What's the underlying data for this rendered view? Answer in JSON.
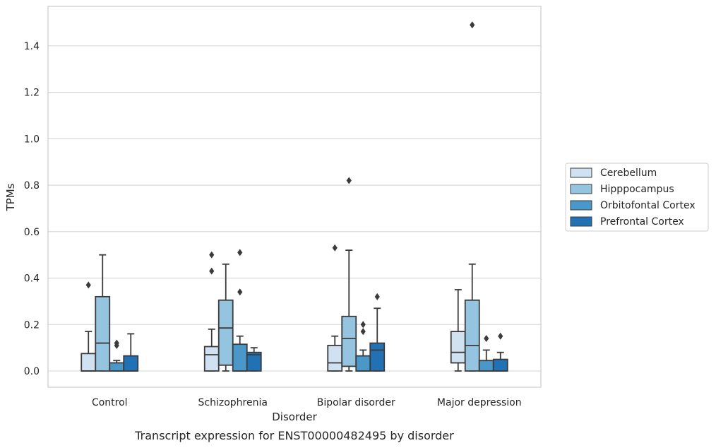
{
  "chart_data": {
    "type": "box",
    "caption": "Transcript expression for ENST00000482495 by disorder",
    "xlabel": "Disorder",
    "ylabel": "TPMs",
    "ylim": [
      -0.07,
      1.57
    ],
    "yticks": [
      0.0,
      0.2,
      0.4,
      0.6,
      0.8,
      1.0,
      1.2,
      1.4
    ],
    "ytick_labels": [
      "0.0",
      "0.2",
      "0.4",
      "0.6",
      "0.8",
      "1.0",
      "1.2",
      "1.4"
    ],
    "grid": "horizontal",
    "legend_position": "right",
    "categories": [
      "Control",
      "Schizophrenia",
      "Bipolar disorder",
      "Major depression"
    ],
    "series": [
      {
        "name": "Cerebellum",
        "color": "#d0e1f2",
        "boxes": [
          {
            "whisker_low": 0.0,
            "q1": 0.0,
            "median": 0.0,
            "q3": 0.075,
            "whisker_high": 0.17,
            "outliers": [
              0.37
            ]
          },
          {
            "whisker_low": 0.0,
            "q1": 0.0,
            "median": 0.07,
            "q3": 0.105,
            "whisker_high": 0.18,
            "outliers": [
              0.43,
              0.5
            ]
          },
          {
            "whisker_low": 0.0,
            "q1": 0.0,
            "median": 0.035,
            "q3": 0.11,
            "whisker_high": 0.15,
            "outliers": [
              0.53
            ]
          },
          {
            "whisker_low": 0.0,
            "q1": 0.035,
            "median": 0.08,
            "q3": 0.17,
            "whisker_high": 0.35,
            "outliers": []
          }
        ]
      },
      {
        "name": "Hipppocampus",
        "color": "#94c4df",
        "boxes": [
          {
            "whisker_low": 0.0,
            "q1": 0.0,
            "median": 0.12,
            "q3": 0.32,
            "whisker_high": 0.5,
            "outliers": []
          },
          {
            "whisker_low": 0.0,
            "q1": 0.025,
            "median": 0.185,
            "q3": 0.305,
            "whisker_high": 0.46,
            "outliers": []
          },
          {
            "whisker_low": 0.0,
            "q1": 0.02,
            "median": 0.14,
            "q3": 0.235,
            "whisker_high": 0.52,
            "outliers": [
              0.82
            ]
          },
          {
            "whisker_low": 0.0,
            "q1": 0.0,
            "median": 0.11,
            "q3": 0.305,
            "whisker_high": 0.46,
            "outliers": []
          }
        ]
      },
      {
        "name": "Orbitofontal Cortex",
        "color": "#4a98c9",
        "boxes": [
          {
            "whisker_low": 0.0,
            "q1": 0.0,
            "median": 0.0,
            "q3": 0.035,
            "whisker_high": 0.045,
            "outliers": [
              0.11,
              0.12
            ]
          },
          {
            "whisker_low": 0.0,
            "q1": 0.0,
            "median": 0.0,
            "q3": 0.115,
            "whisker_high": 0.15,
            "outliers": [
              0.34,
              0.51
            ]
          },
          {
            "whisker_low": 0.0,
            "q1": 0.0,
            "median": 0.0,
            "q3": 0.065,
            "whisker_high": 0.09,
            "outliers": [
              0.17,
              0.2
            ]
          },
          {
            "whisker_low": 0.0,
            "q1": 0.0,
            "median": 0.0,
            "q3": 0.045,
            "whisker_high": 0.09,
            "outliers": [
              0.14
            ]
          }
        ]
      },
      {
        "name": "Prefrontal Cortex",
        "color": "#2171b5",
        "boxes": [
          {
            "whisker_low": 0.0,
            "q1": 0.0,
            "median": 0.0,
            "q3": 0.065,
            "whisker_high": 0.16,
            "outliers": []
          },
          {
            "whisker_low": 0.0,
            "q1": 0.0,
            "median": 0.07,
            "q3": 0.08,
            "whisker_high": 0.1,
            "outliers": []
          },
          {
            "whisker_low": 0.0,
            "q1": 0.0,
            "median": 0.09,
            "q3": 0.12,
            "whisker_high": 0.27,
            "outliers": [
              0.32
            ]
          },
          {
            "whisker_low": 0.0,
            "q1": 0.0,
            "median": 0.0,
            "q3": 0.05,
            "whisker_high": 0.08,
            "outliers": [
              0.15
            ]
          }
        ]
      }
    ],
    "extra_outliers": [
      {
        "category": "Major depression",
        "series": "Hipppocampus",
        "value": 1.49
      }
    ]
  }
}
